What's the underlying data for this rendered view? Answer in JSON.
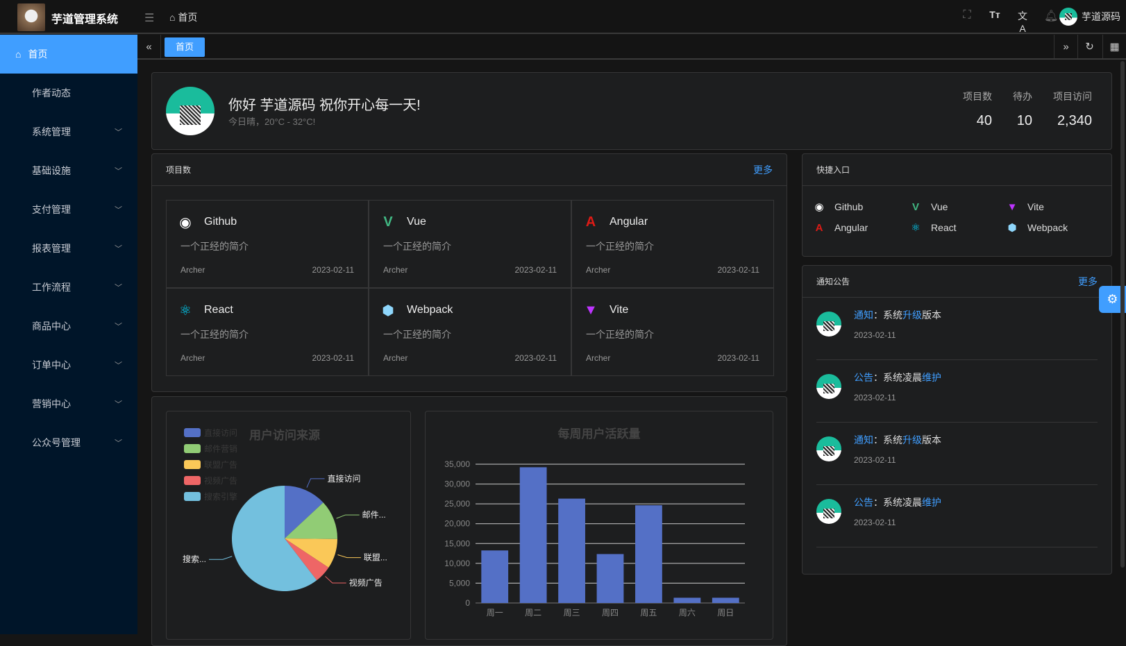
{
  "header": {
    "app_title": "芋道管理系统",
    "breadcrumb": "首页",
    "user_name": "芋道源码",
    "icons": [
      "fullscreen-icon",
      "font-size-icon",
      "translate-icon",
      "bell-icon"
    ]
  },
  "sidebar": {
    "items": [
      {
        "label": "首页",
        "active": true
      },
      {
        "label": "作者动态"
      },
      {
        "label": "系统管理",
        "expandable": true
      },
      {
        "label": "基础设施",
        "expandable": true
      },
      {
        "label": "支付管理",
        "expandable": true
      },
      {
        "label": "报表管理",
        "expandable": true
      },
      {
        "label": "工作流程",
        "expandable": true
      },
      {
        "label": "商品中心",
        "expandable": true
      },
      {
        "label": "订单中心",
        "expandable": true
      },
      {
        "label": "营销中心",
        "expandable": true
      },
      {
        "label": "公众号管理",
        "expandable": true
      }
    ]
  },
  "tabs": {
    "items": [
      {
        "label": "首页"
      }
    ]
  },
  "welcome": {
    "greeting": "你好 芋道源码 祝你开心每一天!",
    "weather": "今日晴，20°C - 32°C!",
    "stats": [
      {
        "label": "项目数",
        "value": "40"
      },
      {
        "label": "待办",
        "value": "10"
      },
      {
        "label": "项目访问",
        "value": "2,340"
      }
    ]
  },
  "projects": {
    "title": "项目数",
    "more": "更多",
    "items": [
      {
        "name": "Github",
        "icon": "github-icon",
        "desc": "一个正经的简介",
        "author": "Archer",
        "date": "2023-02-11"
      },
      {
        "name": "Vue",
        "icon": "vue-icon",
        "desc": "一个正经的简介",
        "author": "Archer",
        "date": "2023-02-11"
      },
      {
        "name": "Angular",
        "icon": "angular-icon",
        "desc": "一个正经的简介",
        "author": "Archer",
        "date": "2023-02-11"
      },
      {
        "name": "React",
        "icon": "react-icon",
        "desc": "一个正经的简介",
        "author": "Archer",
        "date": "2023-02-11"
      },
      {
        "name": "Webpack",
        "icon": "webpack-icon",
        "desc": "一个正经的简介",
        "author": "Archer",
        "date": "2023-02-11"
      },
      {
        "name": "Vite",
        "icon": "vite-icon",
        "desc": "一个正经的简介",
        "author": "Archer",
        "date": "2023-02-11"
      }
    ]
  },
  "shortcuts": {
    "title": "快捷入口",
    "items": [
      {
        "name": "Github",
        "icon": "github-icon"
      },
      {
        "name": "Vue",
        "icon": "vue-icon"
      },
      {
        "name": "Vite",
        "icon": "vite-icon"
      },
      {
        "name": "Angular",
        "icon": "angular-icon"
      },
      {
        "name": "React",
        "icon": "react-icon"
      },
      {
        "name": "Webpack",
        "icon": "webpack-icon"
      }
    ]
  },
  "notices": {
    "title": "通知公告",
    "more": "更多",
    "items": [
      {
        "type": "通知",
        "sep": "：",
        "pre": "系统",
        "hl": "升级",
        "post": "版本",
        "date": "2023-02-11"
      },
      {
        "type": "公告",
        "sep": "：",
        "pre": "系统凌晨",
        "hl": "维护",
        "post": "",
        "date": "2023-02-11"
      },
      {
        "type": "通知",
        "sep": "：",
        "pre": "系统",
        "hl": "升级",
        "post": "版本",
        "date": "2023-02-11"
      },
      {
        "type": "公告",
        "sep": "：",
        "pre": "系统凌晨",
        "hl": "维护",
        "post": "",
        "date": "2023-02-11"
      }
    ]
  },
  "colors": {
    "accent": "#409eff",
    "sidebar": "#001529",
    "bar": "#5470c6"
  },
  "chart_data": [
    {
      "type": "pie",
      "title": "用户访问来源",
      "legend_position": "top-left",
      "slices": [
        {
          "name": "直接访问",
          "value": 335,
          "label": "直接访问",
          "color": "#5470c6"
        },
        {
          "name": "邮件营销",
          "value": 310,
          "label": "邮件...",
          "color": "#91cc75"
        },
        {
          "name": "联盟广告",
          "value": 234,
          "label": "联盟...",
          "color": "#fac858"
        },
        {
          "name": "视频广告",
          "value": 135,
          "label": "视频广告",
          "color": "#ee6666"
        },
        {
          "name": "搜索引擎",
          "value": 1548,
          "label": "搜索...",
          "color": "#73c0de"
        }
      ]
    },
    {
      "type": "bar",
      "title": "每周用户活跃量",
      "categories": [
        "周一",
        "周二",
        "周三",
        "周四",
        "周五",
        "周六",
        "周日"
      ],
      "values": [
        13253,
        34235,
        26321,
        12340,
        24643,
        1322,
        1322
      ],
      "ylim": [
        0,
        35000
      ],
      "yticks": [
        "0",
        "5,000",
        "10,000",
        "15,000",
        "20,000",
        "25,000",
        "30,000",
        "35,000"
      ],
      "grid": true
    }
  ]
}
